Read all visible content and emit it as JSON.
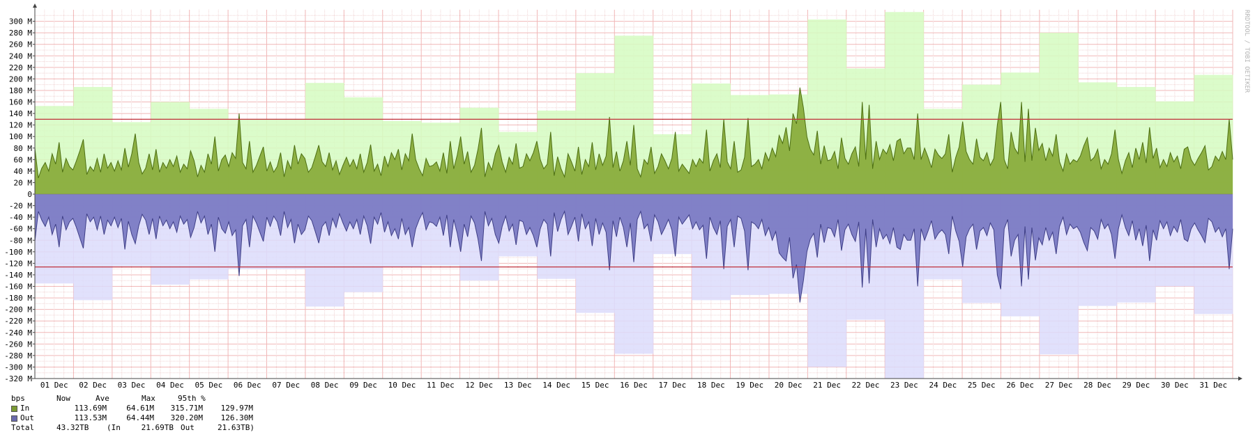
{
  "chart_data": {
    "type": "area",
    "unit_label": "bps",
    "ylim": [
      -320,
      320
    ],
    "y_ticks": [
      -320,
      -300,
      -280,
      -260,
      -240,
      -220,
      -200,
      -180,
      -160,
      -140,
      -120,
      -100,
      -80,
      -60,
      -40,
      -20,
      0,
      20,
      40,
      60,
      80,
      100,
      120,
      140,
      160,
      180,
      200,
      220,
      240,
      260,
      280,
      300
    ],
    "y_tick_labels": [
      "-320 M",
      "-300 M",
      "-280 M",
      "-260 M",
      "-240 M",
      "-220 M",
      "-200 M",
      "-180 M",
      "-160 M",
      "-140 M",
      "-120 M",
      "-100 M",
      "-80 M",
      "-60 M",
      "-40 M",
      "-20 M",
      "0",
      "20 M",
      "40 M",
      "60 M",
      "80 M",
      "100 M",
      "120 M",
      "140 M",
      "160 M",
      "180 M",
      "200 M",
      "220 M",
      "240 M",
      "260 M",
      "280 M",
      "300 M"
    ],
    "x_tick_labels": [
      "01 Dec",
      "02 Dec",
      "03 Dec",
      "04 Dec",
      "05 Dec",
      "06 Dec",
      "07 Dec",
      "08 Dec",
      "09 Dec",
      "10 Dec",
      "11 Dec",
      "12 Dec",
      "13 Dec",
      "14 Dec",
      "15 Dec",
      "16 Dec",
      "17 Dec",
      "18 Dec",
      "19 Dec",
      "20 Dec",
      "21 Dec",
      "22 Dec",
      "23 Dec",
      "24 Dec",
      "25 Dec",
      "26 Dec",
      "27 Dec",
      "28 Dec",
      "29 Dec",
      "30 Dec",
      "31 Dec"
    ],
    "percentile_95": {
      "in": 129.97,
      "out": -126.3
    },
    "daily_max_in": [
      153,
      186,
      125,
      160,
      148,
      130,
      130,
      193,
      168,
      127,
      124,
      150,
      108,
      145,
      210,
      275,
      104,
      192,
      172,
      173,
      303,
      218,
      316,
      148,
      190,
      211,
      280,
      194,
      186,
      161,
      207
    ],
    "daily_max_out": [
      -155,
      -184,
      -125,
      -157,
      -148,
      -130,
      -130,
      -195,
      -170,
      -127,
      -124,
      -150,
      -108,
      -147,
      -206,
      -277,
      -104,
      -184,
      -175,
      -173,
      -300,
      -218,
      -320,
      -148,
      -189,
      -212,
      -278,
      -194,
      -188,
      -160,
      -208
    ],
    "series": [
      {
        "name": "In",
        "values": [
          80,
          28,
          45,
          55,
          40,
          70,
          52,
          90,
          38,
          62,
          48,
          42,
          58,
          75,
          95,
          34,
          48,
          40,
          62,
          38,
          70,
          45,
          55,
          40,
          58,
          42,
          80,
          47,
          70,
          105,
          55,
          35,
          45,
          70,
          42,
          78,
          38,
          55,
          45,
          60,
          48,
          66,
          38,
          52,
          44,
          75,
          58,
          30,
          50,
          38,
          70,
          52,
          100,
          40,
          60,
          68,
          48,
          72,
          62,
          140,
          55,
          44,
          92,
          38,
          50,
          66,
          82,
          40,
          56,
          38,
          48,
          72,
          30,
          58,
          44,
          85,
          52,
          70,
          62,
          38,
          46,
          65,
          85,
          56,
          48,
          72,
          42,
          58,
          34,
          50,
          64,
          48,
          60,
          44,
          70,
          38,
          55,
          86,
          40,
          52,
          32,
          66,
          48,
          72,
          60,
          78,
          42,
          70,
          58,
          105,
          60,
          44,
          32,
          62,
          48,
          50,
          56,
          40,
          72,
          36,
          92,
          44,
          68,
          100,
          52,
          74,
          38,
          50,
          78,
          115,
          30,
          55,
          42,
          70,
          85,
          56,
          38,
          64,
          52,
          88,
          45,
          48,
          70,
          58,
          72,
          92,
          60,
          44,
          52,
          108,
          32,
          65,
          44,
          30,
          70,
          56,
          40,
          82,
          34,
          60,
          48,
          90,
          42,
          70,
          50,
          66,
          134,
          46,
          74,
          40,
          58,
          92,
          50,
          120,
          44,
          30,
          60,
          52,
          82,
          36,
          48,
          70,
          58,
          44,
          62,
          108,
          40,
          52,
          44,
          36,
          60,
          48,
          62,
          54,
          112,
          40,
          58,
          70,
          46,
          130,
          56,
          44,
          92,
          38,
          42,
          64,
          132,
          48,
          52,
          60,
          44,
          72,
          58,
          80,
          65,
          102,
          88,
          116,
          75,
          140,
          122,
          185,
          150,
          100,
          78,
          68,
          110,
          52,
          84,
          58,
          60,
          74,
          44,
          98,
          62,
          52,
          70,
          82,
          48,
          160,
          60,
          155,
          44,
          92,
          60,
          78,
          70,
          86,
          58,
          92,
          96,
          70,
          80,
          80,
          60,
          140,
          60,
          80,
          64,
          46,
          78,
          68,
          62,
          70,
          104,
          38,
          64,
          82,
          126,
          74,
          60,
          52,
          96,
          64,
          58,
          72,
          50,
          62,
          120,
          160,
          60,
          44,
          108,
          80,
          70,
          160,
          56,
          148,
          58,
          115,
          76,
          88,
          58,
          80,
          66,
          104,
          56,
          40,
          70,
          52,
          60,
          56,
          66,
          84,
          98,
          58,
          64,
          78,
          44,
          60,
          52,
          70,
          112,
          60,
          36,
          58,
          72,
          46,
          80,
          60,
          90,
          54,
          116,
          62,
          80,
          46,
          60,
          48,
          72,
          56,
          66,
          44,
          78,
          82,
          60,
          50,
          62,
          72,
          84,
          42,
          48,
          66,
          58,
          74,
          60,
          130,
          60
        ]
      },
      {
        "name": "Out",
        "values": [
          -82,
          -30,
          -45,
          -56,
          -40,
          -70,
          -52,
          -92,
          -38,
          -62,
          -48,
          -42,
          -58,
          -76,
          -94,
          -34,
          -48,
          -40,
          -62,
          -38,
          -70,
          -45,
          -55,
          -40,
          -58,
          -42,
          -96,
          -47,
          -70,
          -86,
          -55,
          -35,
          -45,
          -70,
          -42,
          -78,
          -38,
          -55,
          -45,
          -60,
          -48,
          -66,
          -38,
          -52,
          -44,
          -75,
          -58,
          -30,
          -50,
          -38,
          -70,
          -52,
          -100,
          -40,
          -60,
          -68,
          -48,
          -72,
          -62,
          -142,
          -55,
          -44,
          -92,
          -38,
          -50,
          -66,
          -82,
          -40,
          -56,
          -38,
          -48,
          -72,
          -30,
          -58,
          -44,
          -85,
          -52,
          -70,
          -62,
          -38,
          -46,
          -65,
          -85,
          -56,
          -48,
          -72,
          -42,
          -58,
          -34,
          -50,
          -64,
          -48,
          -60,
          -44,
          -70,
          -38,
          -55,
          -86,
          -40,
          -52,
          -32,
          -66,
          -48,
          -72,
          -60,
          -78,
          -42,
          -70,
          -58,
          -92,
          -60,
          -44,
          -32,
          -62,
          -48,
          -50,
          -56,
          -40,
          -72,
          -36,
          -92,
          -44,
          -68,
          -100,
          -52,
          -74,
          -38,
          -50,
          -78,
          -116,
          -30,
          -55,
          -42,
          -70,
          -85,
          -56,
          -38,
          -64,
          -52,
          -88,
          -45,
          -48,
          -70,
          -58,
          -72,
          -92,
          -60,
          -44,
          -52,
          -108,
          -32,
          -65,
          -44,
          -30,
          -70,
          -56,
          -40,
          -82,
          -34,
          -60,
          -48,
          -90,
          -42,
          -70,
          -50,
          -66,
          -132,
          -46,
          -74,
          -40,
          -58,
          -92,
          -50,
          -118,
          -44,
          -30,
          -60,
          -52,
          -82,
          -36,
          -48,
          -70,
          -58,
          -44,
          -62,
          -108,
          -40,
          -52,
          -44,
          -36,
          -60,
          -48,
          -62,
          -54,
          -112,
          -40,
          -58,
          -70,
          -46,
          -130,
          -56,
          -44,
          -92,
          -38,
          -42,
          -64,
          -132,
          -48,
          -52,
          -60,
          -44,
          -72,
          -58,
          -80,
          -65,
          -102,
          -110,
          -116,
          -75,
          -146,
          -122,
          -188,
          -150,
          -100,
          -78,
          -68,
          -110,
          -52,
          -84,
          -58,
          -60,
          -74,
          -44,
          -98,
          -62,
          -52,
          -70,
          -82,
          -48,
          -162,
          -60,
          -155,
          -44,
          -92,
          -60,
          -78,
          -70,
          -86,
          -58,
          -92,
          -96,
          -70,
          -80,
          -80,
          -60,
          -160,
          -60,
          -80,
          -64,
          -46,
          -78,
          -68,
          -62,
          -70,
          -104,
          -38,
          -64,
          -82,
          -126,
          -74,
          -60,
          -52,
          -96,
          -64,
          -58,
          -72,
          -50,
          -62,
          -140,
          -165,
          -60,
          -44,
          -108,
          -80,
          -70,
          -160,
          -56,
          -148,
          -58,
          -115,
          -76,
          -88,
          -58,
          -80,
          -66,
          -104,
          -56,
          -40,
          -70,
          -52,
          -60,
          -56,
          -66,
          -84,
          -98,
          -58,
          -64,
          -78,
          -44,
          -60,
          -52,
          -70,
          -112,
          -60,
          -36,
          -58,
          -72,
          -46,
          -80,
          -60,
          -90,
          -54,
          -116,
          -62,
          -80,
          -46,
          -60,
          -48,
          -72,
          -56,
          -66,
          -44,
          -78,
          -82,
          -60,
          -50,
          -62,
          -72,
          -84,
          -42,
          -48,
          -66,
          -58,
          -74,
          -60,
          -130,
          -60
        ]
      }
    ],
    "watermark": "RRDTOOL / TOBI OETIKER",
    "grid": true,
    "colors": {
      "in_area": "#8aad3c",
      "in_line": "#4d6f12",
      "out_area": "#7b7bc4",
      "out_line": "#3e3e86",
      "in_max_band": "#d5fcc1",
      "out_max_band": "#dcdcfc",
      "percentile_line": "#c0303a",
      "grid_minor": "#f0d4d4",
      "grid_major": "#f1b7b7"
    }
  },
  "legend": {
    "header": {
      "unit": "bps",
      "now": "Now",
      "ave": "Ave",
      "max": "Max",
      "p95": "95th %"
    },
    "rows": [
      {
        "label": "In",
        "now": "113.69M",
        "ave": "64.61M",
        "max": "315.71M",
        "p95": "129.97M",
        "color": "#7a9a33"
      },
      {
        "label": "Out",
        "now": "113.53M",
        "ave": "64.44M",
        "max": "320.20M",
        "p95": "126.30M",
        "color": "#6a6aab"
      }
    ],
    "total": {
      "label": "Total",
      "value": "43.32TB",
      "in_text": "(In",
      "in_value": "21.69TB",
      "out_text": "Out",
      "out_value": "21.63TB)"
    }
  }
}
